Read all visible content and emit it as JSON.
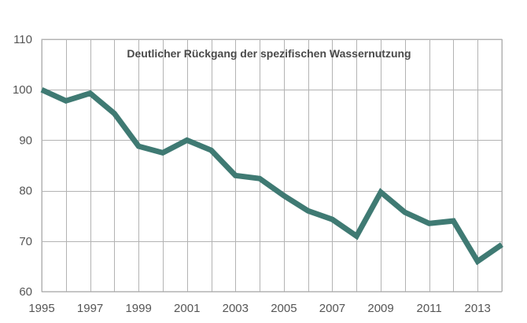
{
  "chart_data": {
    "type": "line",
    "title": "Deutlicher Rückgang der spezifischen Wassernutzung",
    "xlabel": "",
    "ylabel": "",
    "x": [
      1995,
      1996,
      1997,
      1998,
      1999,
      2000,
      2001,
      2002,
      2003,
      2004,
      2005,
      2006,
      2007,
      2008,
      2009,
      2010,
      2011,
      2012,
      2013,
      2014
    ],
    "x_tick_labels": [
      "1995",
      "1997",
      "1999",
      "2001",
      "2003",
      "2005",
      "2007",
      "2009",
      "2011",
      "2013"
    ],
    "y_tick_labels": [
      "60",
      "70",
      "80",
      "90",
      "100",
      "110"
    ],
    "xlim": [
      1995,
      2014
    ],
    "ylim": [
      60,
      110
    ],
    "grid": true,
    "series": [
      {
        "values": [
          100.0,
          97.8,
          99.3,
          95.3,
          88.8,
          87.5,
          90.0,
          88.0,
          83.0,
          82.4,
          79.0,
          76.0,
          74.3,
          71.0,
          79.7,
          75.7,
          73.5,
          74.0,
          66.0,
          69.3
        ],
        "color": "#3f7a73"
      }
    ]
  }
}
